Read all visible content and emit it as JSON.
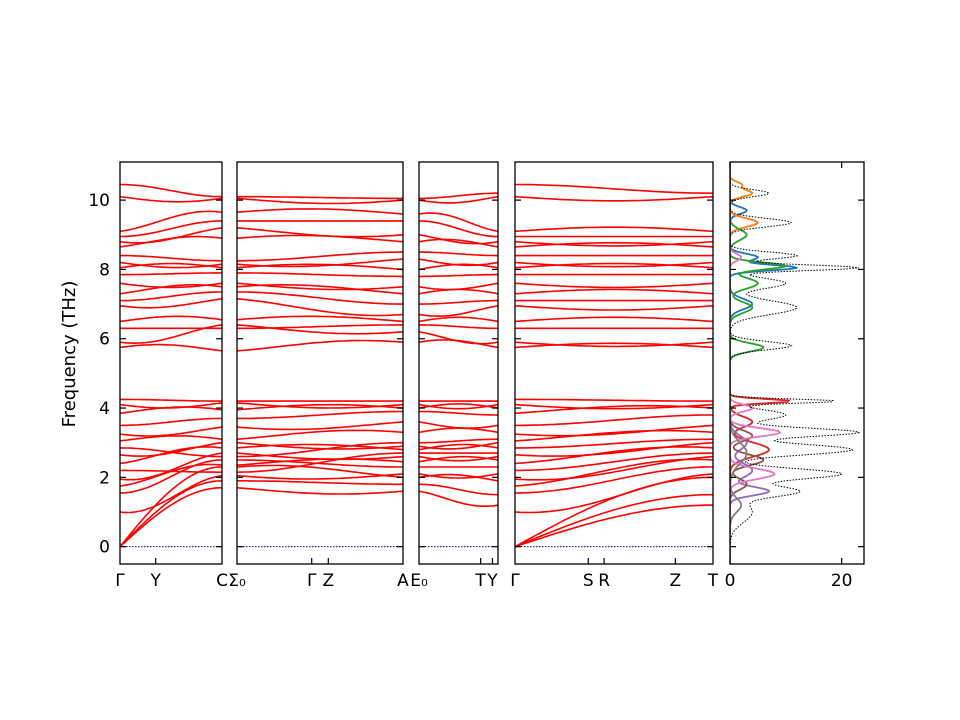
{
  "chart_data": {
    "type": "line",
    "ylabel": "Frequency (THz)",
    "ylim": [
      -0.5,
      11.1
    ],
    "yticks": [
      0,
      2,
      4,
      6,
      8,
      10
    ],
    "band_color": "#ff0000",
    "zero_line_color": "#00008b",
    "panels": [
      {
        "name": "segment-1",
        "xlim": [
          0,
          1
        ],
        "tick_labels": [
          {
            "x": 0.0,
            "text": "Γ"
          },
          {
            "x": 0.35,
            "text": "Y"
          },
          {
            "x": 1.0,
            "text": "C"
          }
        ],
        "band_freqs_start": [
          0,
          0,
          0,
          1.0,
          1.55,
          1.75,
          1.95,
          2.2,
          2.4,
          2.65,
          2.85,
          3.05,
          3.25,
          3.5,
          3.85,
          4.1,
          4.25,
          5.75,
          5.9,
          6.3,
          6.5,
          6.95,
          7.1,
          7.3,
          7.6,
          7.85,
          8.05,
          8.2,
          8.4,
          8.65,
          8.8,
          8.95,
          9.1,
          10.1,
          10.45
        ],
        "band_freqs_end": [
          1.7,
          1.9,
          2.3,
          2.05,
          2.5,
          2.35,
          2.7,
          2.15,
          2.85,
          3.0,
          2.6,
          3.1,
          3.45,
          3.7,
          3.95,
          4.15,
          4.2,
          5.65,
          6.4,
          6.3,
          6.55,
          7.15,
          7.35,
          7.5,
          7.6,
          7.9,
          8.05,
          8.15,
          8.25,
          8.9,
          9.2,
          9.4,
          9.65,
          10.05,
          10.1
        ]
      },
      {
        "name": "segment-2",
        "xlim": [
          0,
          1
        ],
        "tick_labels": [
          {
            "x": 0.0,
            "text": "Σ₀"
          },
          {
            "x": 0.45,
            "text": "Γ"
          },
          {
            "x": 0.55,
            "text": "Z"
          },
          {
            "x": 1.0,
            "text": "A"
          }
        ],
        "band_freqs_start": [
          1.7,
          1.9,
          2.3,
          2.05,
          2.5,
          2.35,
          2.7,
          2.15,
          2.85,
          3.0,
          2.6,
          3.1,
          3.45,
          3.7,
          3.95,
          4.15,
          4.2,
          5.65,
          6.4,
          6.3,
          6.55,
          7.15,
          7.35,
          7.5,
          7.6,
          7.9,
          8.05,
          8.15,
          8.25,
          8.9,
          9.2,
          9.4,
          9.65,
          10.05,
          10.1
        ],
        "band_freqs_end": [
          1.6,
          1.8,
          2.0,
          2.1,
          2.3,
          2.45,
          2.6,
          2.7,
          2.8,
          2.9,
          3.0,
          3.3,
          3.6,
          3.9,
          4.0,
          4.1,
          4.2,
          5.9,
          6.2,
          6.4,
          6.5,
          6.7,
          7.0,
          7.3,
          7.5,
          7.8,
          8.0,
          8.3,
          8.5,
          8.8,
          9.0,
          9.4,
          9.6,
          10.0,
          10.05
        ]
      },
      {
        "name": "segment-3",
        "xlim": [
          0,
          1
        ],
        "tick_labels": [
          {
            "x": 0.0,
            "text": "E₀"
          },
          {
            "x": 0.78,
            "text": "T"
          },
          {
            "x": 0.93,
            "text": "Y"
          }
        ],
        "band_freqs_start": [
          1.6,
          1.8,
          2.0,
          2.1,
          2.3,
          2.45,
          2.6,
          2.7,
          2.8,
          2.9,
          3.0,
          3.3,
          3.6,
          3.9,
          4.0,
          4.1,
          4.2,
          5.9,
          6.2,
          6.4,
          6.5,
          6.7,
          7.0,
          7.3,
          7.5,
          7.8,
          8.0,
          8.3,
          8.5,
          8.8,
          9.0,
          9.4,
          9.6,
          10.0,
          10.05
        ],
        "band_freqs_end": [
          1.2,
          1.5,
          1.9,
          2.1,
          2.3,
          2.5,
          2.6,
          2.7,
          2.85,
          3.0,
          3.1,
          3.3,
          3.5,
          3.8,
          4.0,
          4.1,
          4.2,
          5.75,
          5.9,
          6.3,
          6.5,
          6.95,
          7.1,
          7.3,
          7.6,
          7.85,
          8.05,
          8.2,
          8.4,
          8.65,
          8.8,
          8.95,
          9.1,
          10.1,
          10.2
        ]
      },
      {
        "name": "segment-4",
        "xlim": [
          0,
          1
        ],
        "tick_labels": [
          {
            "x": 0.0,
            "text": "Γ"
          },
          {
            "x": 0.37,
            "text": "S"
          },
          {
            "x": 0.45,
            "text": "R"
          },
          {
            "x": 0.81,
            "text": "Z"
          },
          {
            "x": 1.0,
            "text": "T"
          }
        ],
        "band_freqs_start": [
          0,
          0,
          0,
          1.0,
          1.55,
          1.75,
          1.95,
          2.2,
          2.4,
          2.65,
          2.85,
          3.05,
          3.25,
          3.5,
          3.85,
          4.1,
          4.25,
          5.75,
          5.9,
          6.3,
          6.5,
          6.95,
          7.1,
          7.3,
          7.6,
          7.85,
          8.05,
          8.2,
          8.4,
          8.65,
          8.8,
          8.95,
          9.1,
          10.1,
          10.45
        ],
        "band_freqs_end": [
          1.5,
          1.2,
          2.0,
          2.1,
          2.3,
          2.5,
          2.6,
          2.7,
          2.85,
          3.0,
          3.1,
          3.3,
          3.5,
          3.8,
          4.0,
          4.1,
          4.2,
          5.75,
          5.9,
          6.3,
          6.5,
          6.95,
          7.1,
          7.3,
          7.6,
          7.85,
          8.05,
          8.2,
          8.4,
          8.65,
          8.8,
          8.95,
          9.1,
          10.1,
          10.2
        ]
      }
    ],
    "dos": {
      "xlim": [
        0,
        24
      ],
      "xticks": [
        0,
        20
      ],
      "total_color": "#000000",
      "series": [
        {
          "color": "#1f77b4",
          "peaks": [
            [
              8.05,
              12,
              0.08
            ],
            [
              8.35,
              5,
              0.1
            ],
            [
              7.0,
              4,
              0.15
            ],
            [
              9.7,
              3,
              0.1
            ]
          ]
        },
        {
          "color": "#ff7f0e",
          "peaks": [
            [
              10.2,
              4,
              0.1
            ],
            [
              9.35,
              5,
              0.12
            ],
            [
              10.45,
              2,
              0.08
            ]
          ]
        },
        {
          "color": "#2ca02c",
          "peaks": [
            [
              8.1,
              10,
              0.1
            ],
            [
              7.6,
              5,
              0.15
            ],
            [
              5.75,
              6,
              0.12
            ],
            [
              6.9,
              4,
              0.15
            ],
            [
              9.0,
              3,
              0.15
            ]
          ]
        },
        {
          "color": "#d62728",
          "peaks": [
            [
              4.2,
              11,
              0.06
            ],
            [
              2.8,
              7,
              0.2
            ],
            [
              3.6,
              4,
              0.15
            ]
          ]
        },
        {
          "color": "#9467bd",
          "peaks": [
            [
              1.6,
              7,
              0.12
            ],
            [
              2.2,
              4,
              0.2
            ],
            [
              3.0,
              3,
              0.2
            ]
          ]
        },
        {
          "color": "#8c564b",
          "peaks": [
            [
              2.5,
              6,
              0.15
            ],
            [
              3.2,
              4,
              0.15
            ],
            [
              1.8,
              3,
              0.15
            ]
          ]
        },
        {
          "color": "#e377c2",
          "peaks": [
            [
              3.3,
              9,
              0.12
            ],
            [
              2.1,
              8,
              0.15
            ],
            [
              4.0,
              4,
              0.1
            ],
            [
              8.35,
              2,
              0.1
            ]
          ]
        },
        {
          "color": "#7f7f7f",
          "peaks": [
            [
              2.7,
              3,
              0.3
            ],
            [
              1.2,
              2,
              0.2
            ]
          ]
        }
      ],
      "total_peaks": [
        [
          8.05,
          23,
          0.08
        ],
        [
          7.6,
          10,
          0.15
        ],
        [
          8.4,
          12,
          0.1
        ],
        [
          9.35,
          11,
          0.12
        ],
        [
          10.2,
          7,
          0.1
        ],
        [
          5.8,
          11,
          0.12
        ],
        [
          6.9,
          12,
          0.2
        ],
        [
          4.2,
          19,
          0.06
        ],
        [
          3.3,
          23,
          0.12
        ],
        [
          2.8,
          22,
          0.15
        ],
        [
          2.1,
          20,
          0.15
        ],
        [
          1.6,
          12,
          0.15
        ],
        [
          3.8,
          10,
          0.15
        ],
        [
          1.0,
          4,
          0.3
        ]
      ]
    }
  }
}
